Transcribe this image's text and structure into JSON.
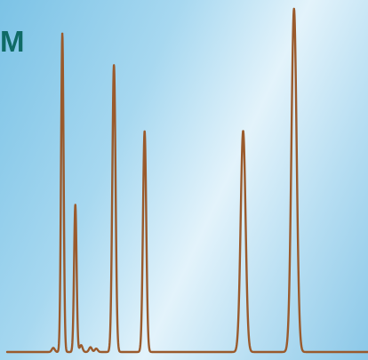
{
  "title_fragment": "M",
  "colors": {
    "trace": "#9a5a2c",
    "title": "#0f6b66"
  },
  "chart_data": {
    "type": "line",
    "title": "",
    "xlabel": "",
    "ylabel": "",
    "grid": false,
    "legend": "none",
    "baseline": 0,
    "xlim": [
      0,
      1
    ],
    "ylim": [
      0,
      1
    ],
    "peaks": [
      {
        "x": 0.153,
        "height": 0.928,
        "width": 0.0035
      },
      {
        "x": 0.189,
        "height": 0.429,
        "width": 0.0035
      },
      {
        "x": 0.296,
        "height": 0.836,
        "width": 0.0045
      },
      {
        "x": 0.381,
        "height": 0.643,
        "width": 0.0045
      },
      {
        "x": 0.654,
        "height": 0.644,
        "width": 0.0068
      },
      {
        "x": 0.795,
        "height": 1.0,
        "width": 0.0072
      }
    ],
    "small_bumps": [
      {
        "x": 0.128,
        "height": 0.012,
        "width": 0.004
      },
      {
        "x": 0.205,
        "height": 0.02,
        "width": 0.004
      },
      {
        "x": 0.231,
        "height": 0.014,
        "width": 0.004
      },
      {
        "x": 0.247,
        "height": 0.01,
        "width": 0.004
      }
    ]
  }
}
